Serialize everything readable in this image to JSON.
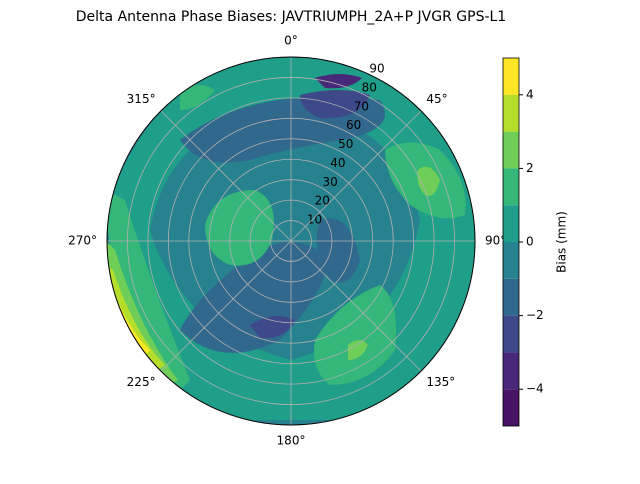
{
  "chart_data": {
    "type": "polar_contour",
    "title": "Delta Antenna Phase Biases: JAVTRIUMPH_2A+P JVGR GPS-L1",
    "theta_ticks": [
      {
        "value": 0,
        "label": "0°"
      },
      {
        "value": 45,
        "label": "45°"
      },
      {
        "value": 90,
        "label": "90°"
      },
      {
        "value": 135,
        "label": "135°"
      },
      {
        "value": 180,
        "label": "180°"
      },
      {
        "value": 225,
        "label": "225°"
      },
      {
        "value": 270,
        "label": "270°"
      },
      {
        "value": 315,
        "label": "315°"
      }
    ],
    "theta_direction": "clockwise",
    "theta_zero": "N",
    "rlim": [
      0,
      90
    ],
    "rticks": [
      10,
      20,
      30,
      40,
      50,
      60,
      70,
      80,
      90
    ],
    "grid": true,
    "colorbar": {
      "label": "Bias (mm)",
      "levels": [
        -5,
        -4,
        -3,
        -2,
        -1,
        0,
        1,
        2,
        3,
        4,
        5
      ],
      "colors": [
        "#471365",
        "#482878",
        "#3e4989",
        "#31688e",
        "#26828e",
        "#1f9e89",
        "#35b779",
        "#6ece58",
        "#b5de2b",
        "#fde725"
      ],
      "clim": [
        -5,
        5
      ],
      "ticks": [
        {
          "value": -4,
          "label": "−4"
        },
        {
          "value": -2,
          "label": "−2"
        },
        0,
        2,
        4
      ]
    }
  }
}
